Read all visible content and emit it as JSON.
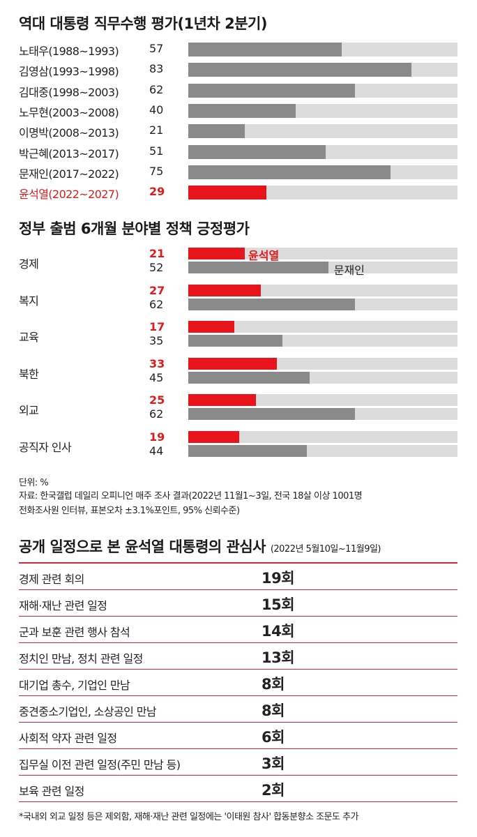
{
  "chart_data": [
    {
      "type": "bar",
      "title": "역대 대통령 직무수행 평가(1년차 2분기)",
      "xlim": [
        0,
        100
      ],
      "categories": [
        "노태우(1988~1993)",
        "김영삼(1993~1998)",
        "김대중(1998~2003)",
        "노무현(2003~2008)",
        "이명박(2008~2013)",
        "박근혜(2013~2017)",
        "문재인(2017~2022)",
        "윤석열(2022~2027)"
      ],
      "values": [
        57,
        83,
        62,
        40,
        21,
        51,
        75,
        29
      ],
      "highlight_index": 7,
      "colors": {
        "default": "#8a8a8a",
        "highlight": "#e8141c",
        "track": "#dcdcdc"
      }
    },
    {
      "type": "bar",
      "title": "정부 출범 6개월 분야별 정책 긍정평가",
      "xlim": [
        0,
        100
      ],
      "categories": [
        "경제",
        "복지",
        "교육",
        "북한",
        "외교",
        "공직자 인사"
      ],
      "series": [
        {
          "name": "윤석열",
          "values": [
            21,
            27,
            17,
            33,
            25,
            19
          ],
          "color": "#e8141c"
        },
        {
          "name": "문재인",
          "values": [
            52,
            62,
            35,
            45,
            62,
            44
          ],
          "color": "#8a8a8a"
        }
      ]
    }
  ],
  "notes": {
    "unit": "단위: %",
    "source_1": "자료: 한국갤럽 데일리 오피니언 매주 조사 결과(2022년 11월1~3일, 전국 18살 이상 1001명",
    "source_2": "전화조사원 인터뷰, 표본오차 ±3.1%포인트, 95% 신뢰수준)"
  },
  "schedule": {
    "title": "공개 일정으로 본 윤석열 대통령의 관심사",
    "period": "(2022년 5월10일~11월9일)",
    "rows": [
      {
        "label": "경제 관련 회의",
        "value": "19회"
      },
      {
        "label": "재해·재난 관련 일정",
        "value": "15회"
      },
      {
        "label": "군과 보훈 관련 행사 참석",
        "value": "14회"
      },
      {
        "label": "정치인 만남, 정치 관련 일정",
        "value": "13회"
      },
      {
        "label": "대기업 총수, 기업인 만남",
        "value": "8회"
      },
      {
        "label": "중견중소기업인, 소상공인 만남",
        "value": "8회"
      },
      {
        "label": "사회적 약자 관련 일정",
        "value": "6회"
      },
      {
        "label": "집무실 이전 관련 일정(주민 만남 등)",
        "value": "3회"
      },
      {
        "label": "보육 관련 일정",
        "value": "2회"
      }
    ],
    "footnote": "*국내외 외교 일정 등은 제외함, 재해·재난 관련 일정에는 '이태원 참사' 합동분향소 조문도 추가"
  }
}
